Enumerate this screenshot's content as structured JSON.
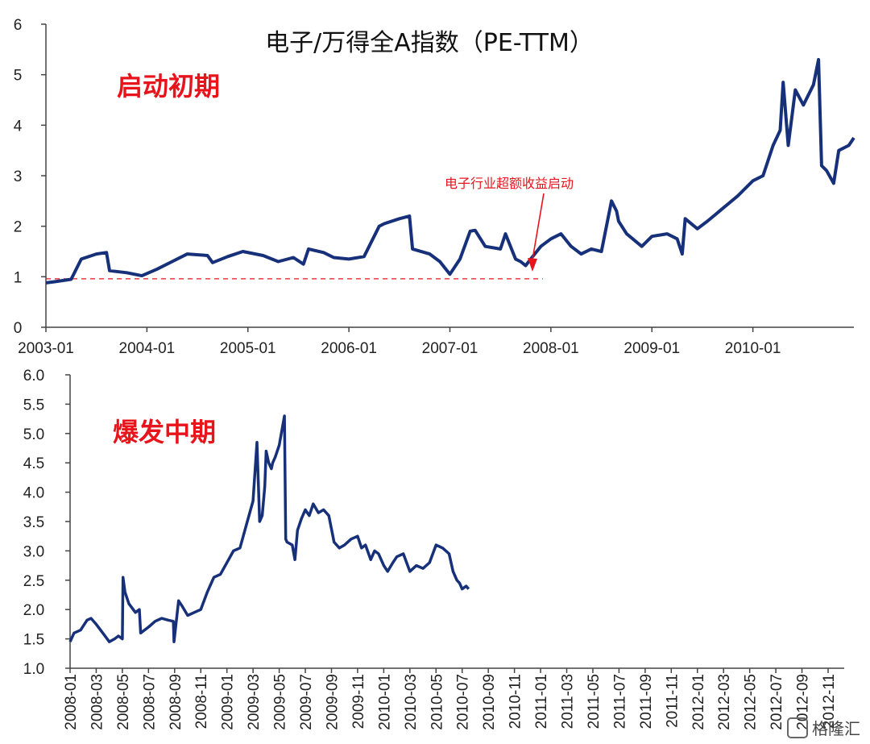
{
  "chart_data": [
    {
      "type": "line",
      "title": "电子/万得全A指数（PE-TTM）",
      "phase_label": "启动初期",
      "annotation": "电子行业超额收益启动",
      "reference_line": 0.96,
      "ylim": [
        0,
        6
      ],
      "yticks": [
        "0",
        "1",
        "2",
        "3",
        "4",
        "5",
        "6"
      ],
      "xticks": [
        "2003-01",
        "2004-01",
        "2005-01",
        "2006-01",
        "2007-01",
        "2008-01",
        "2009-01",
        "2010-01"
      ],
      "series": [
        {
          "x": [
            2003.0,
            2003.08,
            2003.25,
            2003.35,
            2003.5,
            2003.6,
            2003.63,
            2003.8,
            2003.95,
            2004.1,
            2004.25,
            2004.4,
            2004.6,
            2004.65,
            2004.8,
            2004.95,
            2005.15,
            2005.3,
            2005.45,
            2005.55,
            2005.6,
            2005.75,
            2005.85,
            2006.0,
            2006.15,
            2006.3,
            2006.35,
            2006.5,
            2006.6,
            2006.63,
            2006.8,
            2006.9,
            2007.0,
            2007.1,
            2007.2,
            2007.25,
            2007.35,
            2007.5,
            2007.55,
            2007.65,
            2007.7,
            2007.75,
            2007.8,
            2007.9,
            2008.0,
            2008.1,
            2008.2,
            2008.3,
            2008.4,
            2008.5,
            2008.6,
            2008.65,
            2008.67,
            2008.75,
            2008.9,
            2009.0,
            2009.15,
            2009.25,
            2009.3,
            2009.33,
            2009.45,
            2009.55,
            2009.7,
            2009.85,
            2010.0,
            2010.1,
            2010.2,
            2010.27,
            2010.3,
            2010.35,
            2010.42,
            2010.5,
            2010.55,
            2010.6,
            2010.65,
            2010.68,
            2010.73,
            2010.8,
            2010.85,
            2010.95,
            2011.0
          ],
          "values": [
            0.88,
            0.9,
            0.95,
            1.35,
            1.45,
            1.48,
            1.12,
            1.08,
            1.02,
            1.15,
            1.3,
            1.45,
            1.42,
            1.28,
            1.4,
            1.5,
            1.42,
            1.3,
            1.38,
            1.25,
            1.55,
            1.48,
            1.38,
            1.35,
            1.4,
            2.0,
            2.05,
            2.15,
            2.2,
            1.55,
            1.45,
            1.3,
            1.05,
            1.35,
            1.9,
            1.92,
            1.6,
            1.55,
            1.85,
            1.35,
            1.3,
            1.22,
            1.35,
            1.6,
            1.75,
            1.85,
            1.6,
            1.45,
            1.55,
            1.5,
            2.5,
            2.3,
            2.1,
            1.85,
            1.6,
            1.8,
            1.85,
            1.75,
            1.45,
            2.15,
            1.95,
            2.1,
            2.35,
            2.6,
            2.9,
            3.0,
            3.6,
            3.9,
            4.85,
            3.6,
            4.7,
            4.4,
            4.6,
            4.8,
            5.3,
            3.2,
            3.1,
            2.85,
            3.5,
            3.6,
            3.75
          ]
        }
      ]
    },
    {
      "type": "line",
      "phase_label": "爆发中期",
      "ylim": [
        1.0,
        6.0
      ],
      "yticks": [
        "1.0",
        "1.5",
        "2.0",
        "2.5",
        "3.0",
        "3.5",
        "4.0",
        "4.5",
        "5.0",
        "5.5",
        "6.0"
      ],
      "xticks": [
        "2008-01",
        "2008-03",
        "2008-05",
        "2008-07",
        "2008-09",
        "2008-11",
        "2009-01",
        "2009-03",
        "2009-05",
        "2009-07",
        "2009-09",
        "2009-11",
        "2010-01",
        "2010-03",
        "2010-05",
        "2010-07",
        "2010-09",
        "2010-11",
        "2011-01",
        "2011-03",
        "2011-05",
        "2011-07",
        "2011-09",
        "2011-11",
        "2012-01",
        "2012-03",
        "2012-05",
        "2012-07",
        "2012-09",
        "2012-11"
      ],
      "series": [
        {
          "x": [
            0,
            0.3,
            0.8,
            1.3,
            1.6,
            2.0,
            2.5,
            3.0,
            3.4,
            3.7,
            4.0,
            4.05,
            4.2,
            4.5,
            5.0,
            5.3,
            5.4,
            6.0,
            6.5,
            7.0,
            7.5,
            7.9,
            7.95,
            8.3,
            8.6,
            9.0,
            9.5,
            10.0,
            10.5,
            11.0,
            11.5,
            12.0,
            12.5,
            13.0,
            13.5,
            14.0,
            14.3,
            14.5,
            14.7,
            14.9,
            15.0,
            15.2,
            15.4,
            15.5,
            15.7,
            16.0,
            16.4,
            16.5,
            16.6,
            17.0,
            17.2,
            17.4,
            17.7,
            18.0,
            18.3,
            18.6,
            19.0,
            19.4,
            19.8,
            20.2,
            20.6,
            21.0,
            21.5,
            22.0,
            22.3,
            22.6,
            23.0,
            23.3,
            23.6,
            24.0,
            24.3,
            24.7,
            25.0,
            25.5,
            26.0,
            26.5,
            27.0,
            27.5,
            28.0,
            28.5,
            29.0,
            29.3,
            29.6,
            29.8,
            30.0,
            30.3,
            30.5
          ],
          "values": [
            1.45,
            1.6,
            1.65,
            1.82,
            1.85,
            1.75,
            1.6,
            1.45,
            1.5,
            1.55,
            1.5,
            2.55,
            2.3,
            2.1,
            1.95,
            2.0,
            1.6,
            1.7,
            1.8,
            1.85,
            1.82,
            1.8,
            1.45,
            2.15,
            2.05,
            1.9,
            1.95,
            2.0,
            2.3,
            2.55,
            2.6,
            2.8,
            3.0,
            3.05,
            3.45,
            3.85,
            4.85,
            3.5,
            3.6,
            4.1,
            4.7,
            4.5,
            4.4,
            4.5,
            4.6,
            4.8,
            5.3,
            3.2,
            3.15,
            3.1,
            2.85,
            3.35,
            3.55,
            3.7,
            3.6,
            3.8,
            3.65,
            3.7,
            3.6,
            3.15,
            3.05,
            3.1,
            3.2,
            3.25,
            3.05,
            3.1,
            2.85,
            3.0,
            2.95,
            2.75,
            2.65,
            2.8,
            2.9,
            2.95,
            2.65,
            2.75,
            2.7,
            2.8,
            3.1,
            3.05,
            2.95,
            2.65,
            2.5,
            2.45,
            2.35,
            2.4,
            2.35
          ]
        }
      ]
    }
  ],
  "watermark": "格隆汇",
  "colors": {
    "line": "#17307a",
    "phase": "#e8141c",
    "arrow": "#e8141c",
    "axis": "#444444"
  }
}
